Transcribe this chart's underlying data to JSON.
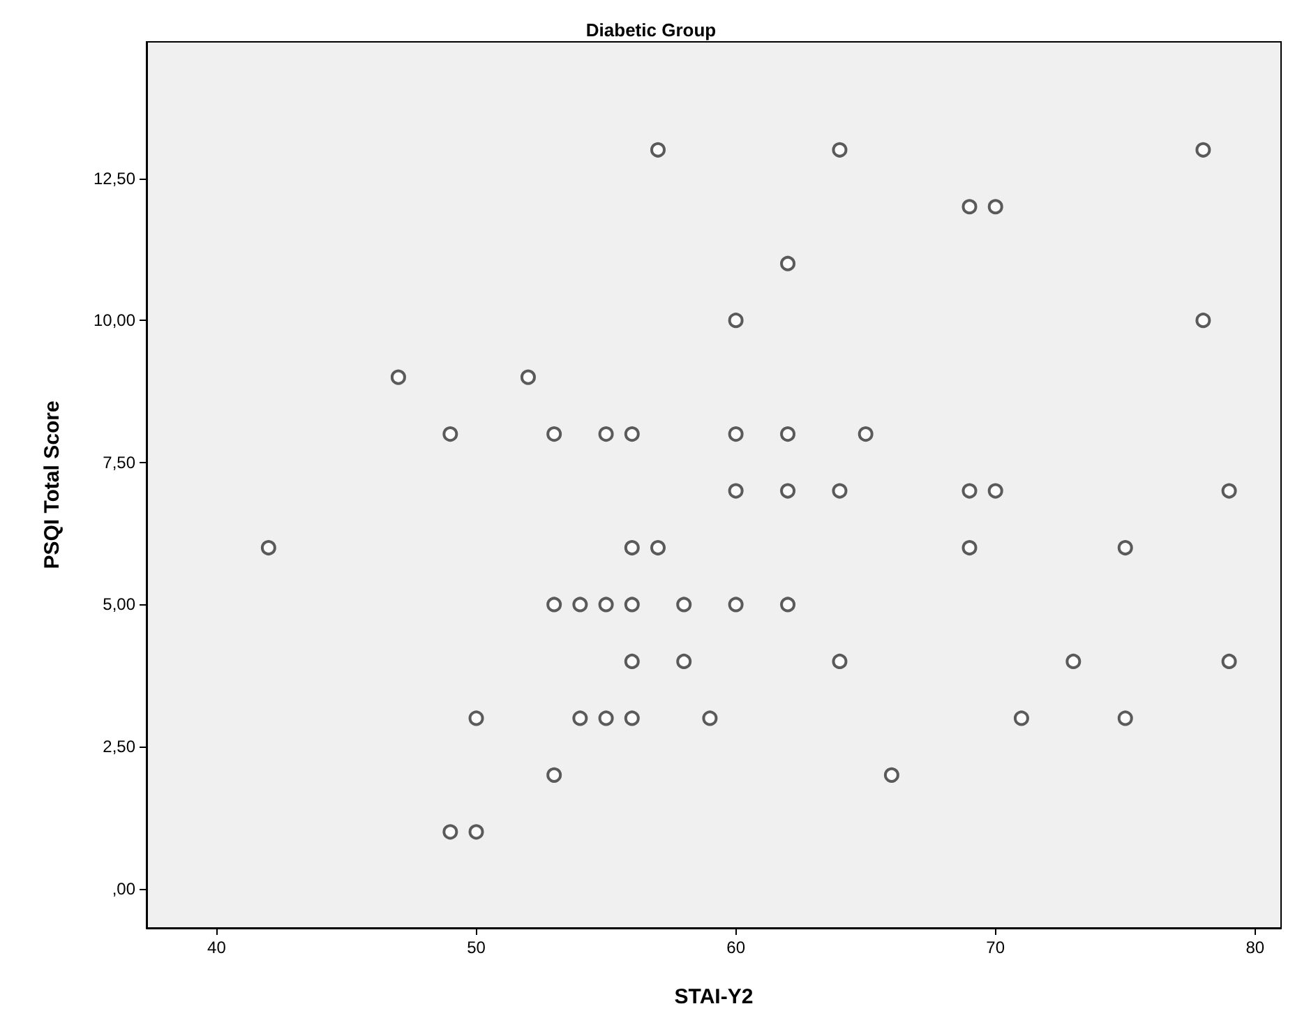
{
  "chart_data": {
    "type": "scatter",
    "title": "Diabetic Group",
    "xlabel": "STAI-Y2",
    "ylabel": "PSQI Total Score",
    "x": [
      57,
      64,
      78,
      69,
      70,
      62,
      60,
      78,
      47,
      52,
      49,
      53,
      55,
      56,
      60,
      62,
      65,
      60,
      62,
      64,
      69,
      70,
      79,
      42,
      56,
      57,
      69,
      75,
      53,
      54,
      55,
      56,
      58,
      60,
      62,
      56,
      58,
      64,
      73,
      79,
      50,
      54,
      55,
      56,
      59,
      71,
      75,
      53,
      66,
      49,
      50
    ],
    "series": [
      {
        "color": "#333333",
        "values": [
          13,
          13,
          13,
          12,
          12,
          11,
          10,
          10,
          9,
          9,
          8,
          8,
          8,
          8,
          8,
          8,
          8,
          7,
          7,
          7,
          7,
          7,
          7,
          6,
          6,
          6,
          6,
          6,
          5,
          5,
          5,
          5,
          5,
          5,
          5,
          4,
          4,
          4,
          4,
          4,
          3,
          3,
          3,
          3,
          3,
          3,
          3,
          2,
          2,
          1,
          1
        ]
      }
    ],
    "xlim": [
      37.3,
      81
    ],
    "xticks": [
      40,
      50,
      60,
      70,
      80
    ],
    "ylim": [
      -0.69,
      14.9
    ],
    "yticks": [
      {
        "value": 0,
        "label": ",00"
      },
      {
        "value": 2.5,
        "label": "2,50"
      },
      {
        "value": 5,
        "label": "5,00"
      },
      {
        "value": 7.5,
        "label": "7,50"
      },
      {
        "value": 10,
        "label": "10,00"
      },
      {
        "value": 12.5,
        "label": "12,50"
      }
    ],
    "marker": "circle",
    "grid": false
  }
}
